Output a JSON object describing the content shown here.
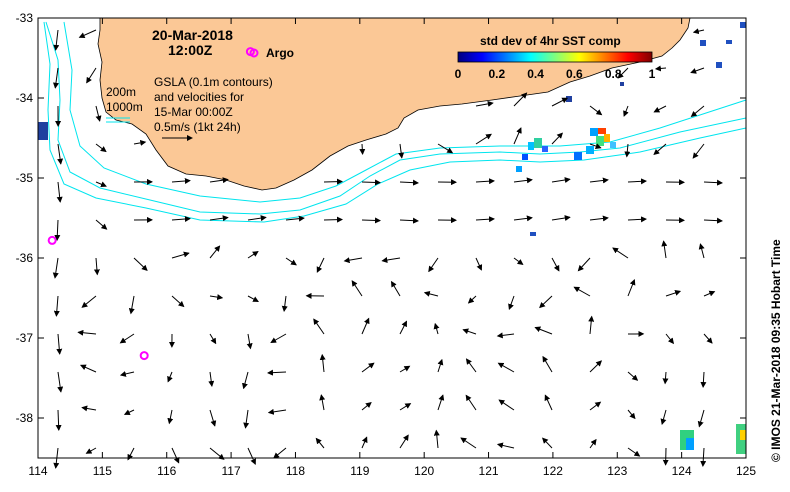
{
  "map": {
    "lon_range": [
      114,
      125
    ],
    "lat_range": [
      -38.5,
      -33
    ],
    "x_ticks": [
      "114",
      "115",
      "116",
      "117",
      "118",
      "119",
      "120",
      "121",
      "122",
      "123",
      "124",
      "125"
    ],
    "y_ticks": [
      "-33",
      "-34",
      "-35",
      "-36",
      "-37",
      "-38"
    ],
    "colors": {
      "land": "#fbc896",
      "contour": "#00e5ee",
      "vector": "#000000",
      "argo": "#ff00ff"
    }
  },
  "header": {
    "date": "20-Mar-2018",
    "time": "12:00Z",
    "argo_label": "Argo"
  },
  "colorbar": {
    "title": "std dev of 4hr SST comp",
    "ticks": [
      "0",
      "0.2",
      "0.4",
      "0.6",
      "0.8",
      "1"
    ],
    "colors": [
      "#00007f",
      "#0000ff",
      "#007fff",
      "#00ffff",
      "#7fff7f",
      "#ffff00",
      "#ff7f00",
      "#ff0000",
      "#7f0000"
    ]
  },
  "annotations": {
    "depth_200": "200m",
    "depth_1000": "1000m",
    "gsla_line1": "GSLA (0.1m contours)",
    "gsla_line2": "and velocities for",
    "gsla_line3": "15-Mar 00:00Z",
    "scale_label": "0.5m/s (1kt 24h)"
  },
  "credit": "© IMOS 21-Mar-2018 09:35 Hobart Time",
  "argo_floats": [
    {
      "lon": 117.3,
      "lat": -33.42
    },
    {
      "lon": 114.22,
      "lat": -35.78
    },
    {
      "lon": 115.65,
      "lat": -37.22
    }
  ]
}
